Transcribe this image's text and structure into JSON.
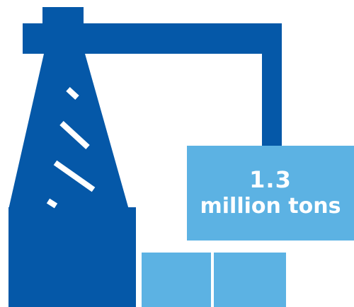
{
  "infographic": {
    "value": "1.3",
    "unit": "million tons",
    "icon": "crane-loading-containers-icon",
    "colors": {
      "crane": "#0558A8",
      "container": "#5CB2E3",
      "text": "#FFFFFF",
      "background": "#FFFFFF"
    }
  }
}
